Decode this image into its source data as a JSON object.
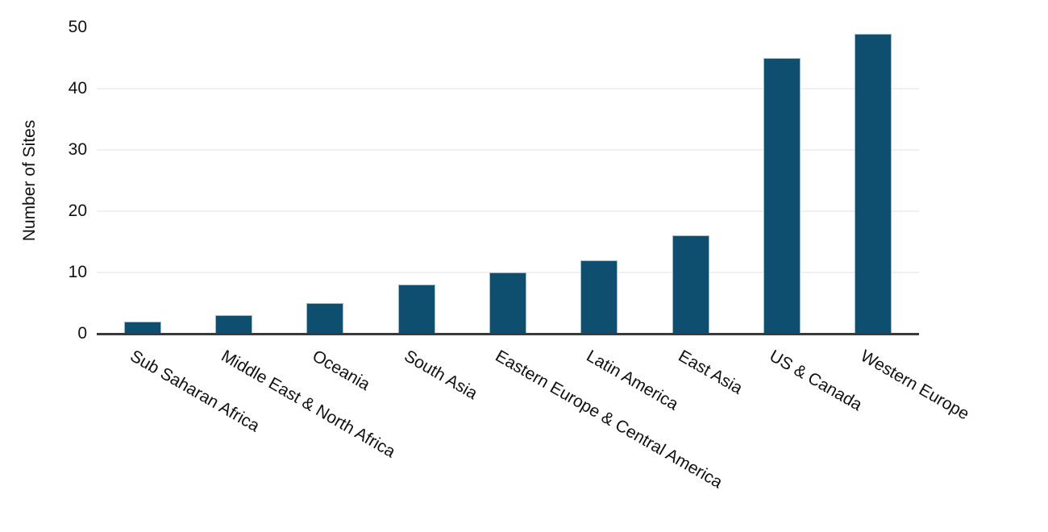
{
  "chart_data": {
    "type": "bar",
    "title": "",
    "xlabel": "",
    "ylabel": "Number of Sites",
    "categories": [
      "Sub Saharan Africa",
      "Middle East & North Africa",
      "Oceania",
      "South Asia",
      "Eastern Europe & Central America",
      "Latin America",
      "East Asia",
      "US & Canada",
      "Western Europe"
    ],
    "values": [
      2,
      3,
      5,
      8,
      10,
      12,
      16,
      45,
      49
    ],
    "ylim": [
      0,
      50
    ],
    "yticks": [
      0,
      10,
      20,
      30,
      40,
      50
    ],
    "gridline_values": [
      10,
      20,
      30,
      40
    ],
    "grid": "horizontal-only",
    "legend": "none",
    "x_tick_rotation_deg": -30,
    "colors": {
      "bar_fill": "#0e4f6f",
      "bar_edge": "#9dbccb",
      "gridline": "#f0f0f0",
      "axis_line": "#3a3a3a",
      "text": "#111111",
      "background": "#ffffff"
    }
  }
}
